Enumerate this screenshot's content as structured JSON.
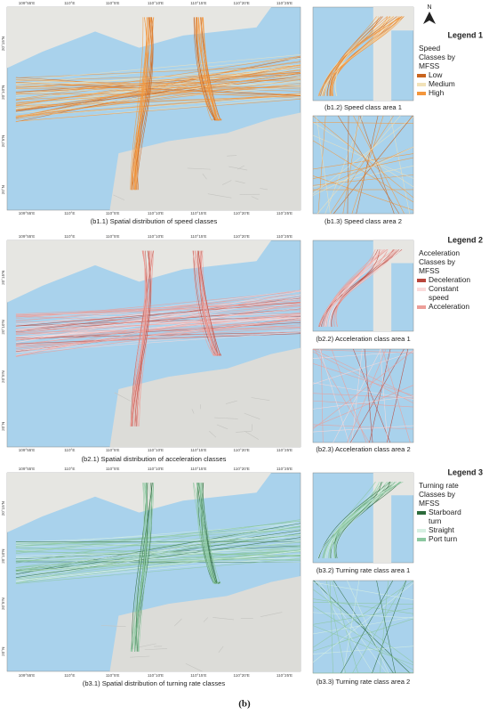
{
  "north": "N",
  "figure_label": "(b)",
  "rows": [
    {
      "main": {
        "caption": "(b1.1) Spatial distribution of speed classes"
      },
      "insets": [
        {
          "caption": "(b1.2) Speed class area 1"
        },
        {
          "caption": "(b1.3) Speed class area 2"
        }
      ],
      "legend": {
        "title": "Legend 1",
        "subtitle": [
          "Speed",
          "Classes by",
          "MFSS"
        ],
        "items": [
          {
            "label": [
              "Low"
            ],
            "color": "#c8641e"
          },
          {
            "label": [
              "Medium"
            ],
            "color": "#f2e2b8"
          },
          {
            "label": [
              "High"
            ],
            "color": "#f4963c"
          }
        ]
      }
    },
    {
      "main": {
        "caption": "(b2.1) Spatial distribution of acceleration classes"
      },
      "insets": [
        {
          "caption": "(b2.2) Acceleration class area 1"
        },
        {
          "caption": "(b2.3) Acceleration class area 2"
        }
      ],
      "legend": {
        "title": "Legend 2",
        "subtitle": [
          "Acceleration",
          "Classes by",
          "MFSS"
        ],
        "items": [
          {
            "label": [
              "Deceleration"
            ],
            "color": "#b9463c"
          },
          {
            "label": [
              "Constant",
              "speed"
            ],
            "color": "#fbdada"
          },
          {
            "label": [
              "Acceleration"
            ],
            "color": "#ec9e98"
          }
        ]
      }
    },
    {
      "main": {
        "caption": "(b3.1) Spatial distribution of turning rate classes"
      },
      "insets": [
        {
          "caption": "(b3.2) Turning rate class area 1"
        },
        {
          "caption": "(b3.3) Turning rate class area 2"
        }
      ],
      "legend": {
        "title": "Legend 3",
        "subtitle": [
          "Turning rate",
          "Classes by",
          "MFSS"
        ],
        "items": [
          {
            "label": [
              "Starboard",
              "turn"
            ],
            "color": "#2d6b3c"
          },
          {
            "label": [
              "Straight"
            ],
            "color": "#d6f0e2"
          },
          {
            "label": [
              "Port turn"
            ],
            "color": "#8cc8a0"
          }
        ]
      }
    }
  ],
  "lon_labels": [
    "109°55'E",
    "110°E",
    "110°5'E",
    "110°10'E",
    "110°15'E",
    "110°20'E",
    "110°25'E"
  ],
  "lat_labels": [
    "20°15'N",
    "20°10'N",
    "20°5'N",
    "20°N"
  ]
}
